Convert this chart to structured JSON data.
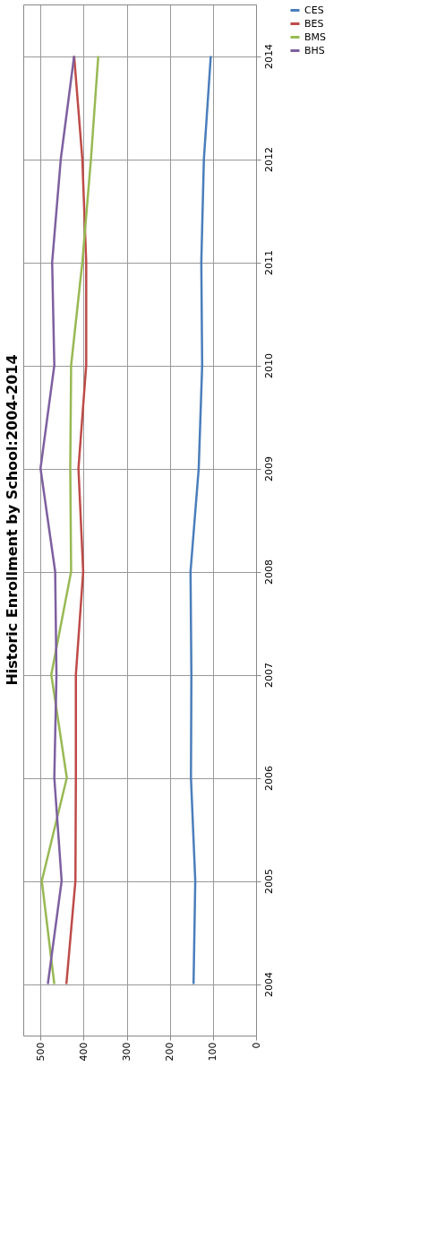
{
  "chart_data": {
    "type": "line",
    "title": "Historic Enrollment by School:2004-2014",
    "categories": [
      "2014",
      "2012",
      "2011",
      "2010",
      "2009",
      "2008",
      "2007",
      "2006",
      "2005",
      "2004"
    ],
    "series": [
      {
        "name": "CES",
        "color": "#4a7ebb",
        "values": [
          105,
          121,
          127,
          125,
          133,
          152,
          150,
          151,
          141,
          145
        ]
      },
      {
        "name": "BES",
        "color": "#be4b48",
        "values": [
          422,
          403,
          394,
          394,
          412,
          401,
          418,
          418,
          419,
          440
        ]
      },
      {
        "name": "BMS",
        "color": "#98b954",
        "values": [
          366,
          383,
          403,
          429,
          431,
          429,
          475,
          439,
          497,
          468
        ]
      },
      {
        "name": "BHS",
        "color": "#7d60a0",
        "values": [
          422,
          453,
          473,
          468,
          500,
          466,
          463,
          468,
          451,
          483
        ]
      }
    ],
    "orientation": "horizontal",
    "xlim": [
      540,
      0
    ],
    "xticks": [
      500,
      400,
      300,
      200,
      100,
      0
    ],
    "grid": true,
    "legend": "right",
    "marker": "none",
    "line_style": "solid"
  }
}
